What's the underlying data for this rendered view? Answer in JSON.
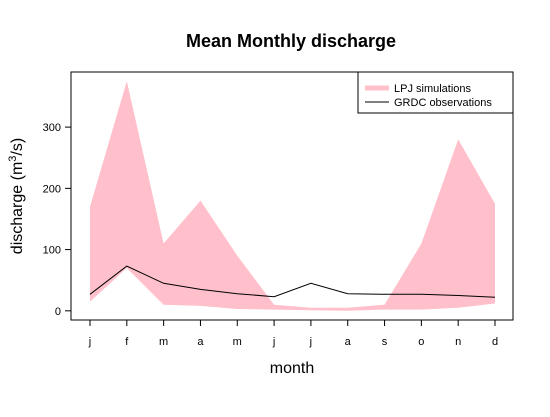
{
  "chart_data": {
    "type": "area",
    "title": "Mean Monthly discharge",
    "xlabel": "month",
    "ylabel_main": "discharge (m",
    "ylabel_sup": "3",
    "ylabel_end": "/s)",
    "categories": [
      "j",
      "f",
      "m",
      "a",
      "m",
      "j",
      "j",
      "a",
      "s",
      "o",
      "n",
      "d"
    ],
    "yticks": [
      0,
      100,
      200,
      300
    ],
    "ylim": [
      -15,
      390
    ],
    "grid": false,
    "legend_position": "top-right",
    "series": [
      {
        "name": "LPJ simulations",
        "kind": "band",
        "color": "#FFC0CB",
        "upper": [
          170,
          375,
          110,
          180,
          90,
          10,
          5,
          5,
          10,
          110,
          280,
          175
        ],
        "lower": [
          15,
          70,
          10,
          8,
          3,
          2,
          1,
          0,
          2,
          2,
          5,
          12
        ]
      },
      {
        "name": "GRDC observations",
        "kind": "line",
        "color": "#000000",
        "values": [
          27,
          73,
          45,
          35,
          28,
          23,
          45,
          28,
          27,
          27,
          25,
          22
        ]
      }
    ]
  }
}
